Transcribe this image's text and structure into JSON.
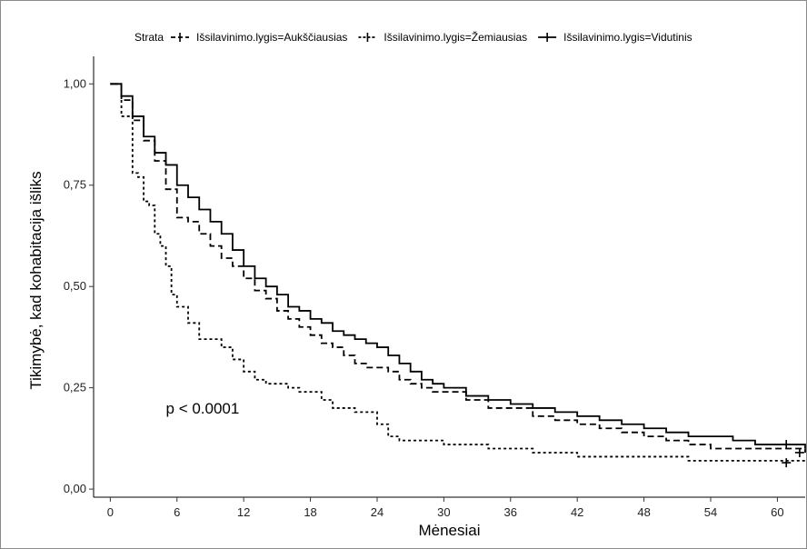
{
  "chart_data": {
    "type": "line",
    "xlabel": "Mėnesiai",
    "ylabel": "Tikimybė, kad kohabitacija išliks",
    "xlim": [
      -1.5,
      62.5
    ],
    "ylim": [
      -0.02,
      1.05
    ],
    "x_ticks": [
      0,
      6,
      12,
      18,
      24,
      30,
      36,
      42,
      48,
      54,
      60
    ],
    "y_ticks": [
      0,
      0.25,
      0.5,
      0.75,
      1.0
    ],
    "y_tick_labels": [
      "0,00",
      "0,25",
      "0,50",
      "0,75",
      "1,00"
    ],
    "grid": false,
    "legend_position": "top",
    "legend_title": "Strata",
    "annotation": {
      "text": "p < 0.0001",
      "x": 5,
      "y": 0.2
    },
    "series": [
      {
        "name": "Išsilavinimo.lygis=Aukščiausias",
        "style": "longdash",
        "color": "#000000",
        "x": [
          0,
          1,
          2,
          3,
          4,
          5,
          6,
          7,
          8,
          9,
          10,
          11,
          12,
          13,
          14,
          15,
          16,
          17,
          18,
          19,
          20,
          21,
          22,
          23,
          24,
          25,
          26,
          27,
          28,
          29,
          30,
          32,
          34,
          36,
          38,
          40,
          42,
          44,
          46,
          48,
          50,
          52,
          54,
          56,
          58,
          60,
          62.5
        ],
        "y": [
          1.0,
          0.96,
          0.91,
          0.86,
          0.81,
          0.74,
          0.67,
          0.66,
          0.63,
          0.6,
          0.57,
          0.55,
          0.52,
          0.49,
          0.47,
          0.44,
          0.42,
          0.4,
          0.38,
          0.36,
          0.35,
          0.33,
          0.31,
          0.3,
          0.3,
          0.29,
          0.27,
          0.26,
          0.25,
          0.24,
          0.24,
          0.22,
          0.2,
          0.2,
          0.18,
          0.17,
          0.16,
          0.15,
          0.14,
          0.13,
          0.12,
          0.11,
          0.1,
          0.1,
          0.1,
          0.1,
          0.09
        ],
        "censor_x": [
          62.0
        ],
        "censor_y": [
          0.09
        ]
      },
      {
        "name": "Išsilavinimo.lygis=Žemiausias",
        "style": "dotted",
        "color": "#000000",
        "x": [
          0,
          1,
          2,
          2.5,
          3,
          3.5,
          4,
          4.5,
          5,
          5.5,
          6,
          7,
          8,
          9,
          10,
          11,
          12,
          13,
          14,
          15,
          16,
          17,
          18,
          19,
          20,
          21,
          22,
          23,
          24,
          25,
          26,
          27,
          28,
          30,
          32,
          34,
          36,
          38,
          40,
          42,
          44,
          46,
          48,
          50,
          52,
          54,
          56,
          58,
          60,
          62.5
        ],
        "y": [
          1.0,
          0.92,
          0.78,
          0.77,
          0.71,
          0.7,
          0.63,
          0.6,
          0.55,
          0.48,
          0.45,
          0.41,
          0.37,
          0.37,
          0.35,
          0.32,
          0.29,
          0.27,
          0.26,
          0.26,
          0.25,
          0.24,
          0.24,
          0.22,
          0.2,
          0.2,
          0.19,
          0.19,
          0.16,
          0.13,
          0.12,
          0.12,
          0.12,
          0.11,
          0.11,
          0.1,
          0.1,
          0.09,
          0.09,
          0.08,
          0.08,
          0.08,
          0.08,
          0.08,
          0.07,
          0.07,
          0.07,
          0.07,
          0.07,
          0.07
        ],
        "censor_x": [
          60.8
        ],
        "censor_y": [
          0.065
        ]
      },
      {
        "name": "Išsilavinimo.lygis=Vidutinis",
        "style": "solid",
        "color": "#000000",
        "x": [
          0,
          1,
          2,
          3,
          4,
          5,
          6,
          7,
          8,
          9,
          10,
          11,
          12,
          13,
          14,
          15,
          16,
          17,
          18,
          19,
          20,
          21,
          22,
          23,
          24,
          25,
          26,
          27,
          28,
          29,
          30,
          32,
          34,
          36,
          38,
          40,
          42,
          44,
          46,
          48,
          50,
          52,
          54,
          56,
          58,
          60,
          62.5
        ],
        "y": [
          1.0,
          0.97,
          0.92,
          0.87,
          0.83,
          0.8,
          0.75,
          0.72,
          0.69,
          0.66,
          0.63,
          0.59,
          0.55,
          0.52,
          0.5,
          0.48,
          0.45,
          0.44,
          0.42,
          0.41,
          0.39,
          0.38,
          0.37,
          0.36,
          0.35,
          0.33,
          0.31,
          0.29,
          0.27,
          0.26,
          0.25,
          0.23,
          0.22,
          0.21,
          0.2,
          0.19,
          0.18,
          0.17,
          0.16,
          0.15,
          0.14,
          0.13,
          0.13,
          0.12,
          0.11,
          0.11,
          0.1
        ],
        "censor_x": [
          60.8
        ],
        "censor_y": [
          0.11
        ]
      }
    ]
  }
}
